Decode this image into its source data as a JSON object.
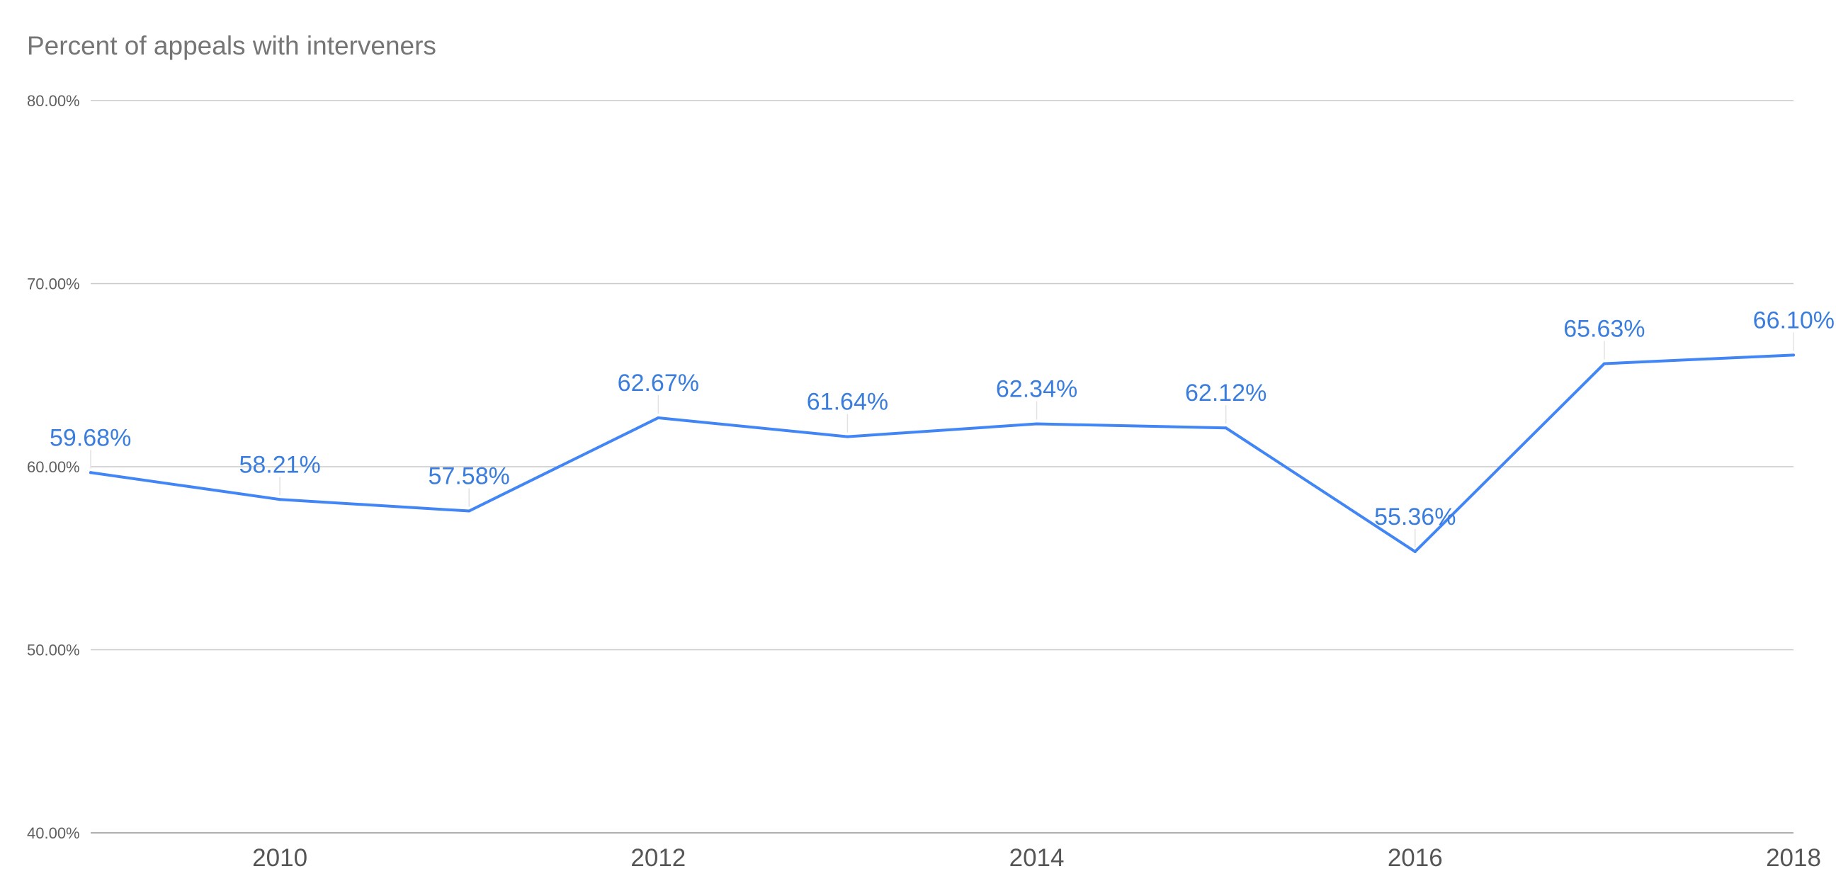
{
  "chart_data": {
    "type": "line",
    "title": "Percent of appeals with interveners",
    "xlabel": "",
    "ylabel": "",
    "x": [
      2009,
      2010,
      2011,
      2012,
      2013,
      2014,
      2015,
      2016,
      2017,
      2018
    ],
    "x_tick_labels": [
      "2010",
      "2012",
      "2014",
      "2016",
      "2018"
    ],
    "x_tick_values": [
      2010,
      2012,
      2014,
      2016,
      2018
    ],
    "xlim": [
      2009,
      2018
    ],
    "ylim": [
      40,
      80
    ],
    "y_ticks": [
      40,
      50,
      60,
      70,
      80
    ],
    "y_tick_labels": [
      "40.00%",
      "50.00%",
      "60.00%",
      "70.00%",
      "80.00%"
    ],
    "grid": true,
    "legend": "none",
    "series": [
      {
        "values": [
          59.68,
          58.21,
          57.58,
          62.67,
          61.64,
          62.34,
          62.12,
          55.36,
          65.63,
          66.1
        ],
        "data_labels": [
          "59.68%",
          "58.21%",
          "57.58%",
          "62.67%",
          "61.64%",
          "62.34%",
          "62.12%",
          "55.36%",
          "65.63%",
          "66.10%"
        ],
        "color": "#4285f4"
      }
    ]
  }
}
